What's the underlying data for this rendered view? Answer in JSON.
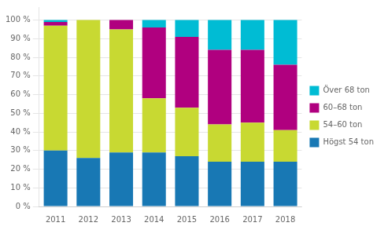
{
  "chart_data": {
    "type": "bar",
    "stacked": true,
    "categories": [
      "2011",
      "2012",
      "2013",
      "2014",
      "2015",
      "2016",
      "2017",
      "2018"
    ],
    "series": [
      {
        "name": "Högst 54 ton",
        "color": "#1878b4",
        "values": [
          30,
          26,
          29,
          29,
          27,
          24,
          24,
          24
        ]
      },
      {
        "name": "54–60 ton",
        "color": "#c8d932",
        "values": [
          67,
          74,
          66,
          29,
          26,
          20,
          21,
          17
        ]
      },
      {
        "name": "60–68 ton",
        "color": "#b0007f",
        "values": [
          2,
          0,
          5,
          38,
          38,
          40,
          39,
          35
        ]
      },
      {
        "name": "Över 68 ton",
        "color": "#00bcd4",
        "values": [
          1,
          0,
          0,
          4,
          9,
          16,
          16,
          24
        ]
      }
    ],
    "ylim": [
      0,
      107
    ],
    "yticks": [
      {
        "value": 0,
        "label": "0 %"
      },
      {
        "value": 10,
        "label": "10 %"
      },
      {
        "value": 20,
        "label": "20 %"
      },
      {
        "value": 30,
        "label": "30 %"
      },
      {
        "value": 40,
        "label": "40 %"
      },
      {
        "value": 50,
        "label": "50 %"
      },
      {
        "value": 60,
        "label": "60 %"
      },
      {
        "value": 70,
        "label": "70 %"
      },
      {
        "value": 80,
        "label": "80 %"
      },
      {
        "value": 90,
        "label": "90 %"
      },
      {
        "value": 100,
        "label": "100 %"
      }
    ],
    "grid": true,
    "legend": "right"
  }
}
